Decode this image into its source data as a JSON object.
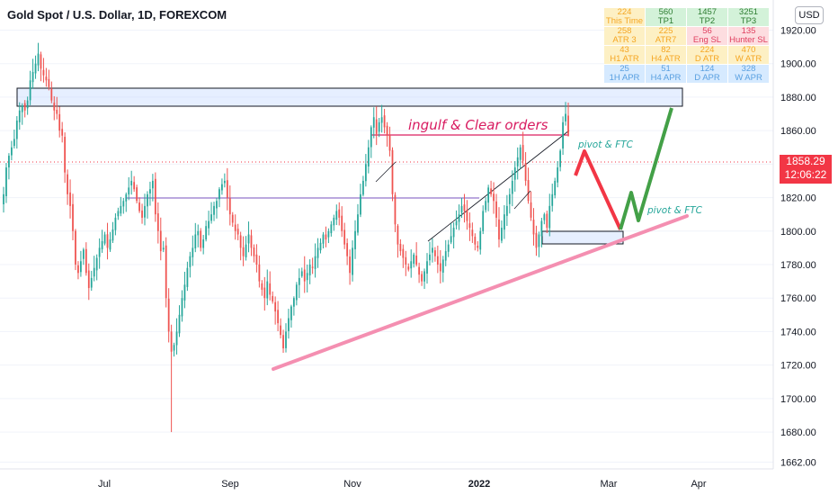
{
  "header": {
    "symbol_title": "Gold Spot / U.S. Dollar, 1D, FOREXCOM",
    "currency": "USD"
  },
  "price_badge": {
    "price": "1858.29",
    "countdown": "12:06:22",
    "color": "#f23645"
  },
  "info_table": {
    "rows": [
      [
        {
          "value": "224",
          "label": "This Time"
        },
        {
          "value": "560",
          "label": "TP1"
        },
        {
          "value": "1457",
          "label": "TP2"
        },
        {
          "value": "3251",
          "label": "TP3"
        }
      ],
      [
        {
          "value": "258",
          "label": "ATR 3"
        },
        {
          "value": "225",
          "label": "ATR7"
        },
        {
          "value": "56",
          "label": "Eng SL"
        },
        {
          "value": "135",
          "label": "Hunter SL"
        }
      ],
      [
        {
          "value": "43",
          "label": "H1 ATR"
        },
        {
          "value": "82",
          "label": "H4 ATR"
        },
        {
          "value": "224",
          "label": "D ATR"
        },
        {
          "value": "470",
          "label": "W ATR"
        }
      ],
      [
        {
          "value": "25",
          "label": "1H APR"
        },
        {
          "value": "51",
          "label": "H4 APR"
        },
        {
          "value": "124",
          "label": "D APR"
        },
        {
          "value": "328",
          "label": "W APR"
        }
      ]
    ],
    "colors": [
      [
        "#fdf0c4",
        "#d3f2d9",
        "#d3f2d9",
        "#d3f2d9"
      ],
      [
        "#fdf0c4",
        "#fdf0c4",
        "#fddde0",
        "#fddde0"
      ],
      [
        "#fdf0c4",
        "#fdf0c4",
        "#fdf0c4",
        "#fdf0c4"
      ],
      [
        "#d6eaff",
        "#d6eaff",
        "#d6eaff",
        "#d6eaff"
      ]
    ],
    "text_colors": [
      [
        "#f5a623",
        "#2e7d32",
        "#2e7d32",
        "#2e7d32"
      ],
      [
        "#f5a623",
        "#f5a623",
        "#e04060",
        "#e04060"
      ],
      [
        "#f5a623",
        "#f5a623",
        "#f5a623",
        "#f5a623"
      ],
      [
        "#5aa0e0",
        "#5aa0e0",
        "#5aa0e0",
        "#5aa0e0"
      ]
    ]
  },
  "annotations": {
    "engulf_text": "ingulf & Clear orders",
    "pivot_ftc_1": "pivot & FTC",
    "pivot_ftc_2": "pivot & FTC"
  },
  "chart_data": {
    "type": "candlestick",
    "y_ticks": [
      "1920.00",
      "1900.00",
      "1880.00",
      "1860.00",
      "1840.00",
      "1820.00",
      "1800.00",
      "1780.00",
      "1760.00",
      "1740.00",
      "1720.00",
      "1700.00",
      "1680.00",
      "1662.00"
    ],
    "y_range": [
      1658,
      1938
    ],
    "x_ticks": [
      "Jul",
      "Sep",
      "Nov",
      "2022",
      "Mar",
      "Apr"
    ],
    "x_ticks_bold": [
      "2022"
    ],
    "x_range_months": [
      "2021-05",
      "2022-04"
    ],
    "colors": {
      "up": "#26a69a",
      "down": "#ef5350"
    },
    "closes": [
      1822,
      1838,
      1845,
      1850,
      1855,
      1866,
      1872,
      1875,
      1872,
      1878,
      1890,
      1895,
      1900,
      1906,
      1897,
      1893,
      1890,
      1886,
      1878,
      1872,
      1870,
      1860,
      1857,
      1835,
      1822,
      1815,
      1800,
      1780,
      1775,
      1782,
      1789,
      1775,
      1766,
      1772,
      1778,
      1784,
      1790,
      1794,
      1798,
      1790,
      1795,
      1801,
      1808,
      1812,
      1815,
      1818,
      1822,
      1826,
      1830,
      1825,
      1818,
      1812,
      1808,
      1815,
      1822,
      1825,
      1830,
      1810,
      1800,
      1788,
      1790,
      1760,
      1740,
      1728,
      1732,
      1740,
      1750,
      1760,
      1768,
      1778,
      1785,
      1790,
      1798,
      1800,
      1790,
      1795,
      1803,
      1806,
      1810,
      1815,
      1818,
      1825,
      1828,
      1830,
      1820,
      1810,
      1805,
      1800,
      1798,
      1790,
      1785,
      1792,
      1798,
      1790,
      1785,
      1780,
      1770,
      1765,
      1760,
      1770,
      1762,
      1758,
      1752,
      1745,
      1738,
      1730,
      1740,
      1748,
      1755,
      1760,
      1768,
      1772,
      1776,
      1770,
      1775,
      1780,
      1778,
      1785,
      1790,
      1793,
      1798,
      1795,
      1800,
      1804,
      1808,
      1812,
      1808,
      1800,
      1792,
      1785,
      1775,
      1790,
      1800,
      1810,
      1822,
      1830,
      1840,
      1850,
      1862,
      1868,
      1858,
      1865,
      1868,
      1862,
      1857,
      1848,
      1822,
      1804,
      1792,
      1788,
      1784,
      1780,
      1777,
      1782,
      1786,
      1780,
      1774,
      1770,
      1776,
      1782,
      1786,
      1790,
      1785,
      1780,
      1776,
      1783,
      1788,
      1792,
      1797,
      1802,
      1806,
      1810,
      1815,
      1812,
      1806,
      1802,
      1797,
      1792,
      1790,
      1800,
      1812,
      1818,
      1826,
      1822,
      1818,
      1808,
      1795,
      1802,
      1810,
      1815,
      1822,
      1830,
      1838,
      1844,
      1850,
      1842,
      1830,
      1818,
      1808,
      1798,
      1790,
      1798,
      1806,
      1810,
      1802,
      1815,
      1822,
      1830,
      1838,
      1848,
      1865,
      1870,
      1858
    ]
  }
}
